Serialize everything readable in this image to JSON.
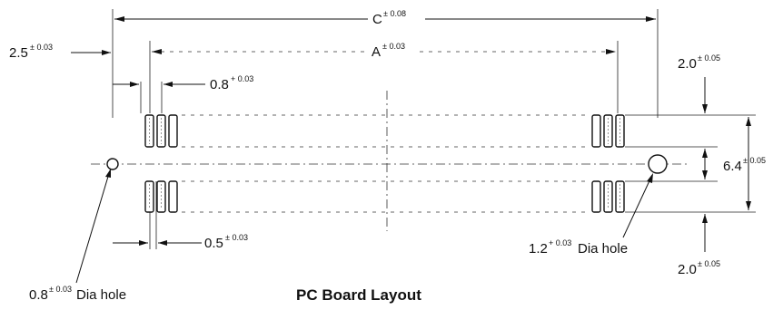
{
  "title": "PC Board Layout",
  "dimensions": {
    "c": {
      "value": "C",
      "tolerance": "± 0.08"
    },
    "a": {
      "value": "A",
      "tolerance": "± 0.03"
    },
    "left_offset": {
      "value": "2.5",
      "tolerance": "± 0.03"
    },
    "pad_pitch": {
      "value": "0.8",
      "tolerance": "+ 0.03"
    },
    "pad_width": {
      "value": "0.5",
      "tolerance": "± 0.03"
    },
    "top_margin": {
      "value": "2.0",
      "tolerance": "± 0.05"
    },
    "row_spacing": {
      "value": "6.4",
      "tolerance": "± 0.05"
    },
    "bottom_margin": {
      "value": "2.0",
      "tolerance": "± 0.05"
    }
  },
  "holes": {
    "small": {
      "value": "0.8",
      "tolerance": "± 0.03",
      "suffix": "Dia hole"
    },
    "large": {
      "value": "1.2",
      "tolerance": "+ 0.03",
      "suffix": "Dia hole"
    }
  }
}
